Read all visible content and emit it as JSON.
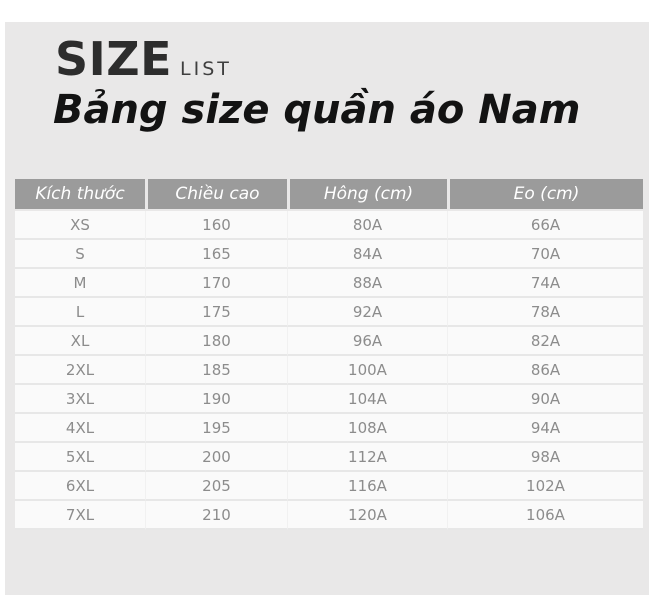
{
  "header": {
    "logo_primary": "SIZE",
    "logo_secondary": "LIST",
    "title": "Bảng size quần áo Nam"
  },
  "table": {
    "columns": [
      "Kích thước",
      "Chiều cao",
      "Hông (cm)",
      "Eo (cm)"
    ],
    "rows": [
      [
        "XS",
        "160",
        "80A",
        "66A"
      ],
      [
        "S",
        "165",
        "84A",
        "70A"
      ],
      [
        "M",
        "170",
        "88A",
        "74A"
      ],
      [
        "L",
        "175",
        "92A",
        "78A"
      ],
      [
        "XL",
        "180",
        "96A",
        "82A"
      ],
      [
        "2XL",
        "185",
        "100A",
        "86A"
      ],
      [
        "3XL",
        "190",
        "104A",
        "90A"
      ],
      [
        "4XL",
        "195",
        "108A",
        "94A"
      ],
      [
        "5XL",
        "200",
        "112A",
        "98A"
      ],
      [
        "6XL",
        "205",
        "116A",
        "102A"
      ],
      [
        "7XL",
        "210",
        "120A",
        "106A"
      ]
    ]
  },
  "colors": {
    "page_margin": "#ffffff",
    "panel_background": "#e9e8e8",
    "table_header_background": "#9b9b9b",
    "table_header_text": "#ffffff",
    "table_row_background": "#fafafa",
    "table_row_text": "#8c8c8c",
    "title_text": "#131313"
  }
}
